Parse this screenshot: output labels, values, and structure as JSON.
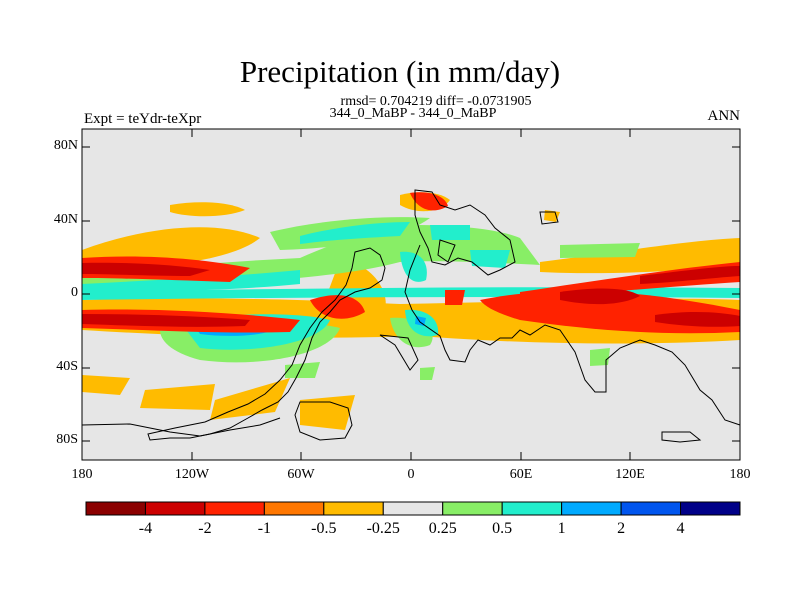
{
  "title": "Precipitation (in mm/day)",
  "stats_line": "rmsd= 0.704219 diff= -0.0731905",
  "subtitle": "344_0_MaBP - 344_0_MaBP",
  "expt_label": "Expt = teYdr-teXpr",
  "season_label": "ANN",
  "lat_labels": [
    "80N",
    "40N",
    "0",
    "40S",
    "80S"
  ],
  "lon_labels": [
    "180",
    "120W",
    "60W",
    "0",
    "60E",
    "120E",
    "180"
  ],
  "colorbar": {
    "colors": [
      "#8b0000",
      "#cc0000",
      "#ff2200",
      "#ff7700",
      "#ffbb00",
      "#e6e6e6",
      "#88ee66",
      "#22eecc",
      "#00aaff",
      "#0055ee",
      "#000088"
    ],
    "labels": [
      "-4",
      "-2",
      "-1",
      "-0.5",
      "-0.25",
      "0.25",
      "0.5",
      "1",
      "2",
      "4"
    ]
  },
  "colors": {
    "background": "#e6e6e6",
    "coastline": "#000000"
  }
}
